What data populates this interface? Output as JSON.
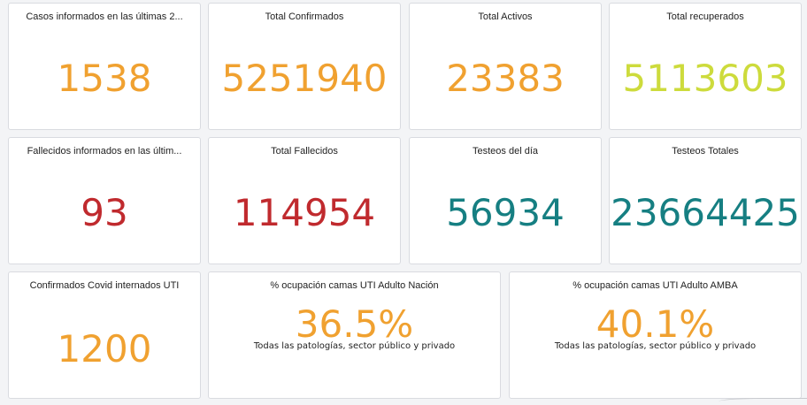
{
  "colors": {
    "orange": "#f0a130",
    "lime": "#cddb3c",
    "red": "#c02a2e",
    "teal": "#167f82"
  },
  "cards": [
    {
      "title": "Casos informados en las últimas 2...",
      "value": "1538"
    },
    {
      "title": "Total Confirmados",
      "value": "5251940"
    },
    {
      "title": "Total Activos",
      "value": "23383"
    },
    {
      "title": "Total recuperados",
      "value": "5113603"
    },
    {
      "title": "Fallecidos informados en las últim...",
      "value": "93"
    },
    {
      "title": "Total Fallecidos",
      "value": "114954"
    },
    {
      "title": "Testeos del día",
      "value": "56934"
    },
    {
      "title": "Testeos Totales",
      "value": "23664425"
    },
    {
      "title": "Confirmados Covid internados UTI",
      "value": "1200"
    },
    {
      "title": "% ocupación camas UTI Adulto Nación",
      "value": "36.5%",
      "subtitle": "Todas las patologías, sector público y privado"
    },
    {
      "title": "% ocupación camas UTI Adulto AMBA",
      "value": "40.1%",
      "subtitle": "Todas las patologías, sector público y privado"
    }
  ]
}
